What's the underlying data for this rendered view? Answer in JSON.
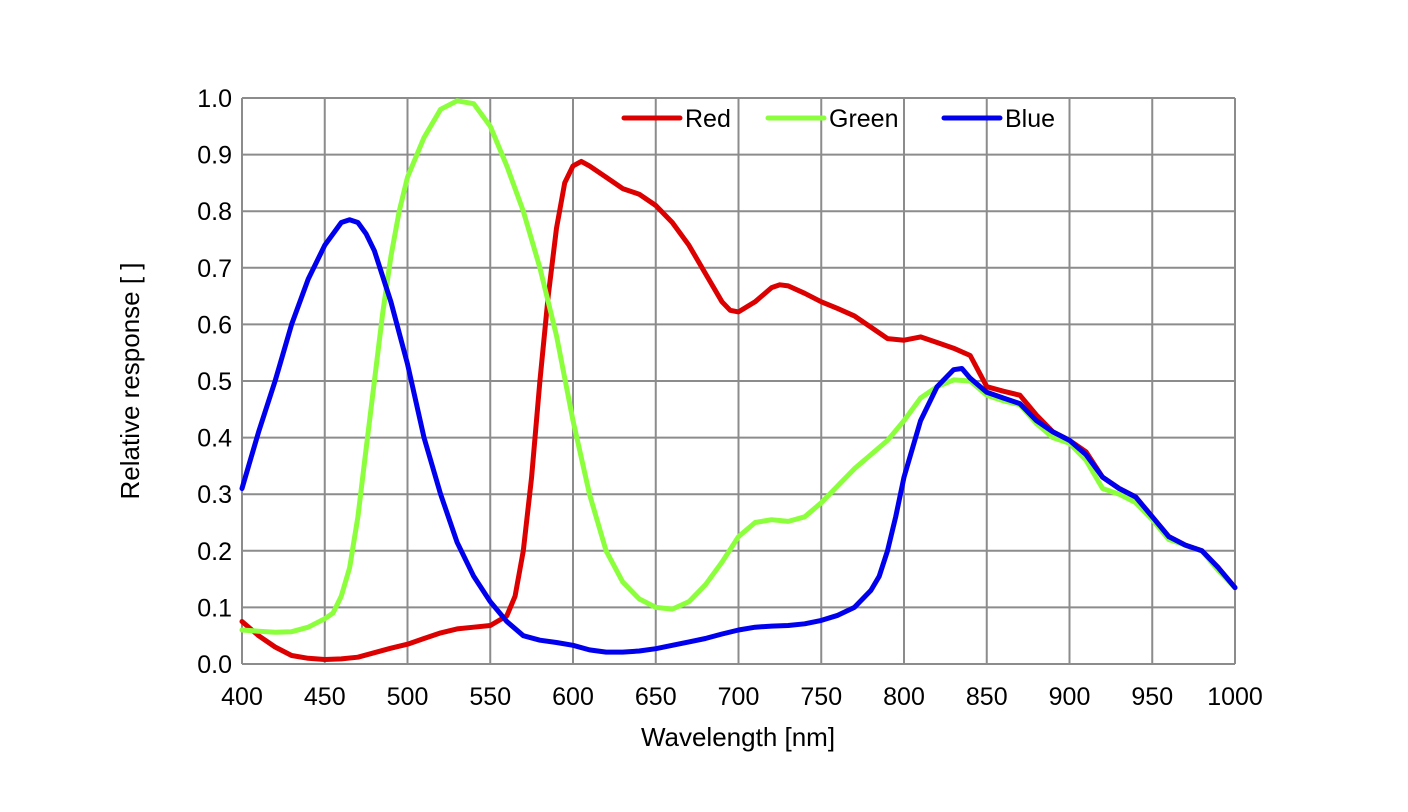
{
  "chart_data": {
    "type": "line",
    "title": "",
    "xlabel": "Wavelength [nm]",
    "ylabel": "Relative response [ ]",
    "xlim": [
      400,
      1000
    ],
    "ylim": [
      0,
      1.0
    ],
    "xticks": [
      400,
      450,
      500,
      550,
      600,
      650,
      700,
      750,
      800,
      850,
      900,
      950,
      1000
    ],
    "yticks": [
      0,
      0.1,
      0.2,
      0.3,
      0.4,
      0.5,
      0.6,
      0.7,
      0.8,
      0.9,
      1.0
    ],
    "xtick_labels": [
      "400",
      "450",
      "500",
      "550",
      "600",
      "650",
      "700",
      "750",
      "800",
      "850",
      "900",
      "950",
      "1000"
    ],
    "ytick_labels": [
      "0.0",
      "0.1",
      "0.2",
      "0.3",
      "0.4",
      "0.5",
      "0.6",
      "0.7",
      "0.8",
      "0.9",
      "1.0"
    ],
    "grid": true,
    "legend_position": "top-right",
    "series": [
      {
        "name": "Red",
        "color": "#dd0000",
        "points": [
          [
            400,
            0.075
          ],
          [
            410,
            0.05
          ],
          [
            420,
            0.03
          ],
          [
            430,
            0.015
          ],
          [
            440,
            0.01
          ],
          [
            450,
            0.008
          ],
          [
            460,
            0.009
          ],
          [
            470,
            0.012
          ],
          [
            480,
            0.02
          ],
          [
            490,
            0.028
          ],
          [
            500,
            0.035
          ],
          [
            510,
            0.045
          ],
          [
            520,
            0.055
          ],
          [
            530,
            0.062
          ],
          [
            540,
            0.065
          ],
          [
            550,
            0.068
          ],
          [
            560,
            0.085
          ],
          [
            565,
            0.12
          ],
          [
            570,
            0.2
          ],
          [
            575,
            0.33
          ],
          [
            580,
            0.5
          ],
          [
            585,
            0.65
          ],
          [
            590,
            0.77
          ],
          [
            595,
            0.85
          ],
          [
            600,
            0.88
          ],
          [
            605,
            0.888
          ],
          [
            610,
            0.88
          ],
          [
            620,
            0.86
          ],
          [
            630,
            0.84
          ],
          [
            640,
            0.83
          ],
          [
            650,
            0.81
          ],
          [
            660,
            0.78
          ],
          [
            670,
            0.74
          ],
          [
            680,
            0.69
          ],
          [
            690,
            0.64
          ],
          [
            695,
            0.625
          ],
          [
            700,
            0.622
          ],
          [
            710,
            0.64
          ],
          [
            720,
            0.665
          ],
          [
            725,
            0.67
          ],
          [
            730,
            0.668
          ],
          [
            740,
            0.655
          ],
          [
            750,
            0.64
          ],
          [
            760,
            0.628
          ],
          [
            770,
            0.615
          ],
          [
            780,
            0.595
          ],
          [
            790,
            0.575
          ],
          [
            800,
            0.572
          ],
          [
            810,
            0.578
          ],
          [
            820,
            0.568
          ],
          [
            830,
            0.558
          ],
          [
            840,
            0.545
          ],
          [
            850,
            0.49
          ],
          [
            860,
            0.482
          ],
          [
            870,
            0.475
          ],
          [
            880,
            0.44
          ],
          [
            890,
            0.41
          ],
          [
            900,
            0.395
          ],
          [
            910,
            0.375
          ],
          [
            920,
            0.33
          ],
          [
            930,
            0.31
          ],
          [
            940,
            0.295
          ],
          [
            950,
            0.26
          ],
          [
            960,
            0.225
          ],
          [
            970,
            0.21
          ],
          [
            980,
            0.2
          ],
          [
            990,
            0.17
          ],
          [
            1000,
            0.135
          ]
        ]
      },
      {
        "name": "Green",
        "color": "#8cff3c",
        "points": [
          [
            400,
            0.06
          ],
          [
            410,
            0.058
          ],
          [
            420,
            0.056
          ],
          [
            430,
            0.057
          ],
          [
            440,
            0.065
          ],
          [
            450,
            0.08
          ],
          [
            455,
            0.09
          ],
          [
            460,
            0.12
          ],
          [
            465,
            0.17
          ],
          [
            470,
            0.26
          ],
          [
            475,
            0.38
          ],
          [
            480,
            0.5
          ],
          [
            485,
            0.62
          ],
          [
            490,
            0.72
          ],
          [
            495,
            0.8
          ],
          [
            500,
            0.86
          ],
          [
            510,
            0.93
          ],
          [
            520,
            0.98
          ],
          [
            530,
            0.995
          ],
          [
            540,
            0.99
          ],
          [
            550,
            0.95
          ],
          [
            560,
            0.88
          ],
          [
            570,
            0.8
          ],
          [
            580,
            0.7
          ],
          [
            590,
            0.58
          ],
          [
            600,
            0.43
          ],
          [
            610,
            0.3
          ],
          [
            620,
            0.2
          ],
          [
            630,
            0.145
          ],
          [
            640,
            0.115
          ],
          [
            650,
            0.1
          ],
          [
            660,
            0.097
          ],
          [
            670,
            0.11
          ],
          [
            680,
            0.14
          ],
          [
            690,
            0.18
          ],
          [
            700,
            0.225
          ],
          [
            710,
            0.25
          ],
          [
            720,
            0.255
          ],
          [
            730,
            0.252
          ],
          [
            740,
            0.26
          ],
          [
            750,
            0.285
          ],
          [
            760,
            0.315
          ],
          [
            770,
            0.345
          ],
          [
            780,
            0.37
          ],
          [
            790,
            0.395
          ],
          [
            800,
            0.43
          ],
          [
            810,
            0.47
          ],
          [
            820,
            0.49
          ],
          [
            830,
            0.502
          ],
          [
            840,
            0.5
          ],
          [
            850,
            0.475
          ],
          [
            860,
            0.465
          ],
          [
            870,
            0.458
          ],
          [
            880,
            0.425
          ],
          [
            890,
            0.4
          ],
          [
            900,
            0.39
          ],
          [
            910,
            0.36
          ],
          [
            920,
            0.31
          ],
          [
            930,
            0.3
          ],
          [
            940,
            0.285
          ],
          [
            950,
            0.255
          ],
          [
            960,
            0.22
          ],
          [
            970,
            0.21
          ],
          [
            980,
            0.2
          ],
          [
            990,
            0.165
          ],
          [
            1000,
            0.135
          ]
        ]
      },
      {
        "name": "Blue",
        "color": "#0000ee",
        "points": [
          [
            400,
            0.31
          ],
          [
            410,
            0.41
          ],
          [
            420,
            0.5
          ],
          [
            430,
            0.6
          ],
          [
            440,
            0.68
          ],
          [
            450,
            0.74
          ],
          [
            460,
            0.78
          ],
          [
            465,
            0.785
          ],
          [
            470,
            0.78
          ],
          [
            475,
            0.76
          ],
          [
            480,
            0.73
          ],
          [
            490,
            0.64
          ],
          [
            500,
            0.53
          ],
          [
            510,
            0.4
          ],
          [
            520,
            0.3
          ],
          [
            530,
            0.215
          ],
          [
            540,
            0.155
          ],
          [
            550,
            0.11
          ],
          [
            560,
            0.075
          ],
          [
            570,
            0.05
          ],
          [
            580,
            0.042
          ],
          [
            590,
            0.038
          ],
          [
            600,
            0.033
          ],
          [
            610,
            0.025
          ],
          [
            620,
            0.021
          ],
          [
            630,
            0.021
          ],
          [
            640,
            0.023
          ],
          [
            650,
            0.027
          ],
          [
            660,
            0.033
          ],
          [
            670,
            0.039
          ],
          [
            680,
            0.045
          ],
          [
            690,
            0.053
          ],
          [
            700,
            0.06
          ],
          [
            710,
            0.065
          ],
          [
            720,
            0.067
          ],
          [
            730,
            0.068
          ],
          [
            740,
            0.071
          ],
          [
            750,
            0.077
          ],
          [
            760,
            0.086
          ],
          [
            770,
            0.1
          ],
          [
            780,
            0.13
          ],
          [
            785,
            0.155
          ],
          [
            790,
            0.2
          ],
          [
            795,
            0.26
          ],
          [
            800,
            0.33
          ],
          [
            810,
            0.43
          ],
          [
            820,
            0.49
          ],
          [
            830,
            0.52
          ],
          [
            835,
            0.522
          ],
          [
            840,
            0.505
          ],
          [
            850,
            0.48
          ],
          [
            860,
            0.47
          ],
          [
            870,
            0.46
          ],
          [
            880,
            0.43
          ],
          [
            890,
            0.41
          ],
          [
            900,
            0.395
          ],
          [
            910,
            0.37
          ],
          [
            920,
            0.33
          ],
          [
            930,
            0.31
          ],
          [
            940,
            0.295
          ],
          [
            950,
            0.26
          ],
          [
            960,
            0.225
          ],
          [
            970,
            0.21
          ],
          [
            980,
            0.2
          ],
          [
            990,
            0.17
          ],
          [
            1000,
            0.135
          ]
        ]
      }
    ]
  }
}
